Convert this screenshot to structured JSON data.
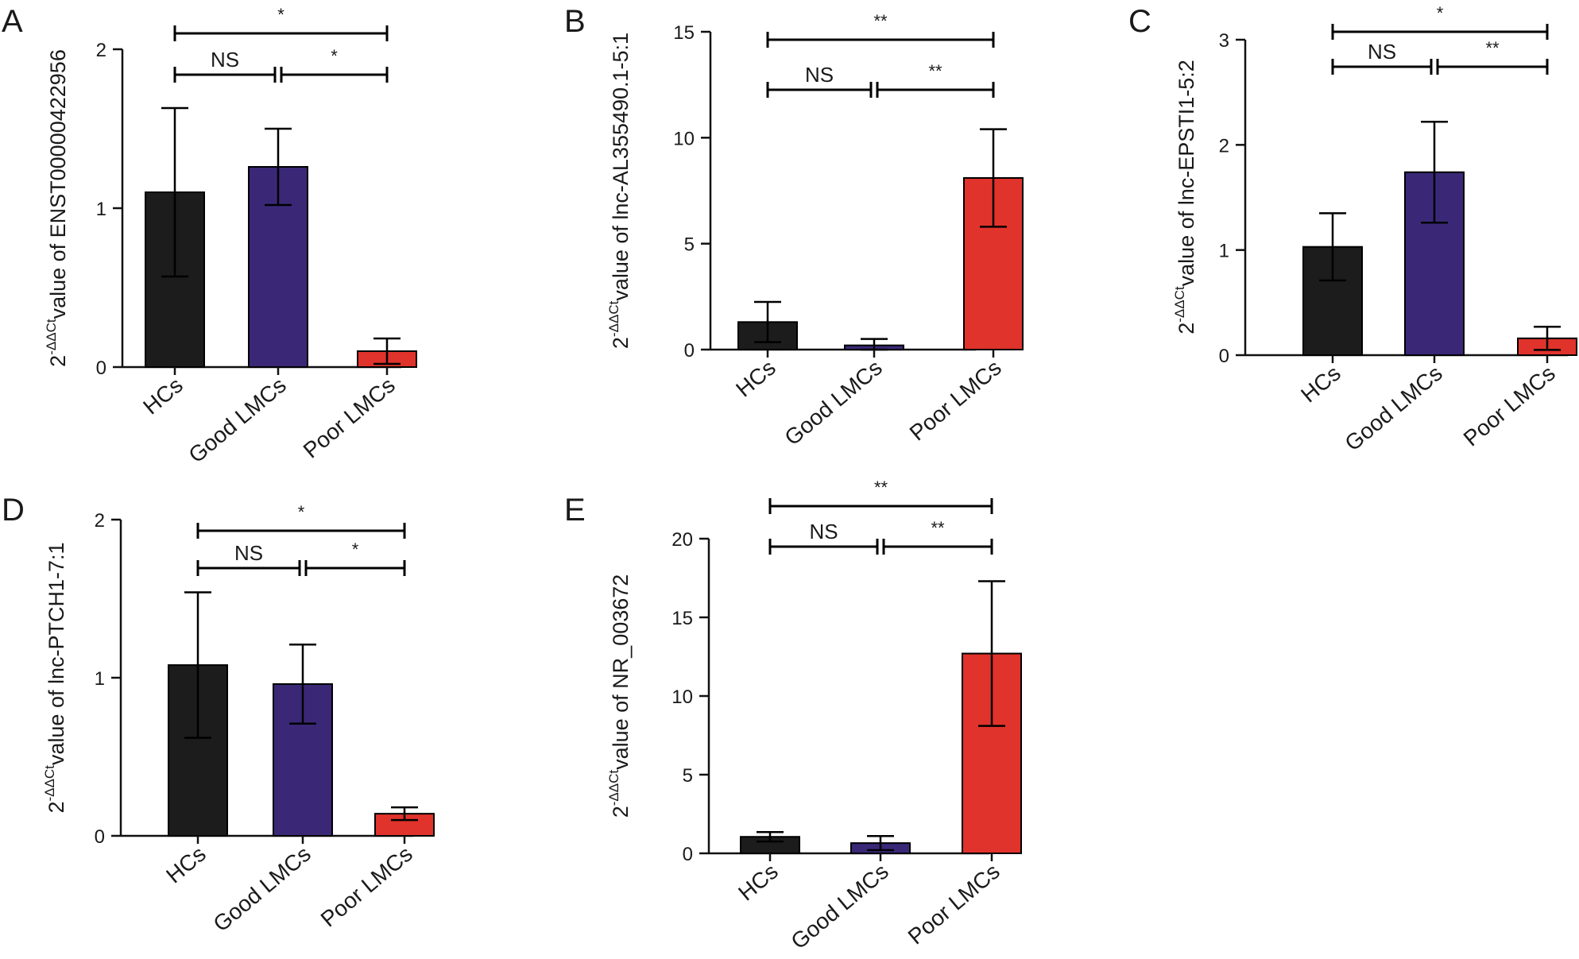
{
  "colors": {
    "HCs": "#1c1c1c",
    "Good LMCs": "#3a2877",
    "Poor LMCs": "#e0332c",
    "axis": "#111111"
  },
  "chart_data": [
    {
      "panel": "A",
      "type": "bar",
      "categories": [
        "HCs",
        "Good LMCs",
        "Poor LMCs"
      ],
      "values": [
        1.1,
        1.26,
        0.1
      ],
      "errors": [
        0.53,
        0.24,
        0.08
      ],
      "ylabel_prefix": "2",
      "ylabel_superscript": "-ΔΔCt",
      "ylabel": "value of ENST00000422956",
      "ylim": [
        0,
        2
      ],
      "yticks": [
        0,
        1,
        2
      ],
      "significance": [
        {
          "from": 0,
          "to": 1,
          "label": "NS"
        },
        {
          "from": 1,
          "to": 2,
          "label": "*"
        },
        {
          "from": 0,
          "to": 2,
          "label": "*"
        }
      ]
    },
    {
      "panel": "B",
      "type": "bar",
      "categories": [
        "HCs",
        "Good LMCs",
        "Poor LMCs"
      ],
      "values": [
        1.3,
        0.2,
        8.1
      ],
      "errors": [
        0.95,
        0.3,
        2.3
      ],
      "ylabel_prefix": "2",
      "ylabel_superscript": "-ΔΔCt",
      "ylabel": "value of lnc-AL355490.1-5:1",
      "ylim": [
        0,
        15
      ],
      "yticks": [
        0,
        5,
        10,
        15
      ],
      "significance": [
        {
          "from": 0,
          "to": 1,
          "label": "NS"
        },
        {
          "from": 1,
          "to": 2,
          "label": "**"
        },
        {
          "from": 0,
          "to": 2,
          "label": "**"
        }
      ]
    },
    {
      "panel": "C",
      "type": "bar",
      "categories": [
        "HCs",
        "Good LMCs",
        "Poor LMCs"
      ],
      "values": [
        1.03,
        1.74,
        0.16
      ],
      "errors": [
        0.32,
        0.48,
        0.11
      ],
      "ylabel_prefix": "2",
      "ylabel_superscript": "-ΔΔCt",
      "ylabel": "value of lnc-EPSTI1-5:2",
      "ylim": [
        0,
        3
      ],
      "yticks": [
        0,
        1,
        2,
        3
      ],
      "significance": [
        {
          "from": 0,
          "to": 1,
          "label": "NS"
        },
        {
          "from": 1,
          "to": 2,
          "label": "**"
        },
        {
          "from": 0,
          "to": 2,
          "label": "*"
        }
      ]
    },
    {
      "panel": "D",
      "type": "bar",
      "categories": [
        "HCs",
        "Good LMCs",
        "Poor LMCs"
      ],
      "values": [
        1.08,
        0.96,
        0.14
      ],
      "errors": [
        0.46,
        0.25,
        0.04
      ],
      "ylabel_prefix": "2",
      "ylabel_superscript": "-ΔΔCt",
      "ylabel": "value of lnc-PTCH1-7:1",
      "ylim": [
        0,
        2
      ],
      "yticks": [
        0,
        1,
        2
      ],
      "significance": [
        {
          "from": 0,
          "to": 1,
          "label": "NS"
        },
        {
          "from": 1,
          "to": 2,
          "label": "*"
        },
        {
          "from": 0,
          "to": 2,
          "label": "*"
        }
      ]
    },
    {
      "panel": "E",
      "type": "bar",
      "categories": [
        "HCs",
        "Good LMCs",
        "Poor LMCs"
      ],
      "values": [
        1.05,
        0.65,
        12.7
      ],
      "errors": [
        0.3,
        0.45,
        4.6
      ],
      "ylabel_prefix": "2",
      "ylabel_superscript": "-ΔΔCt",
      "ylabel": "value of NR_003672",
      "ylim": [
        0,
        20
      ],
      "yticks": [
        0,
        5,
        10,
        15,
        20
      ],
      "significance": [
        {
          "from": 0,
          "to": 1,
          "label": "NS"
        },
        {
          "from": 1,
          "to": 2,
          "label": "**"
        },
        {
          "from": 0,
          "to": 2,
          "label": "**"
        }
      ]
    }
  ]
}
